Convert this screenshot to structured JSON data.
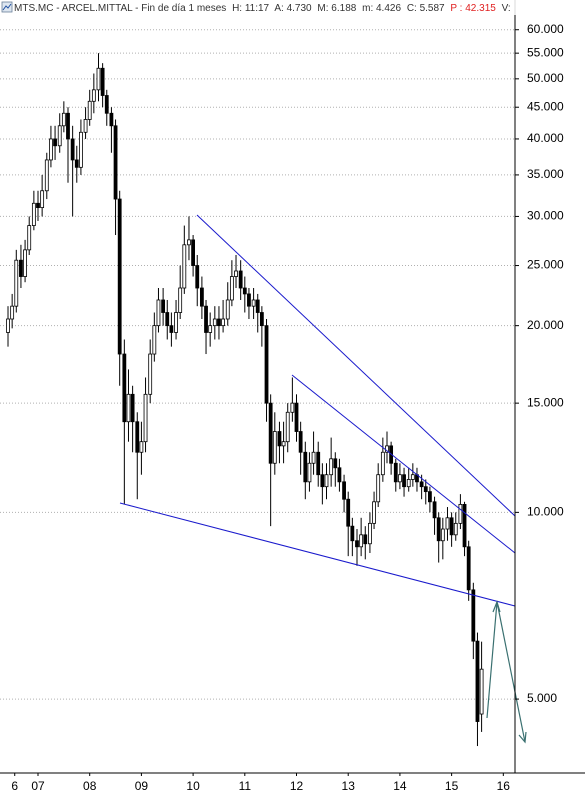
{
  "chart_data": {
    "type": "candlestick",
    "title": "MTS.MC - ARCEL.MITTAL - Fin de día 1 meses",
    "header": [
      "H: 11:17",
      "A: 4.730",
      "M: 6.188",
      "m: 4.426",
      "C: 5.587"
    ],
    "header_alert": "P : 42.315",
    "header_tail": "V:",
    "log": true,
    "grid": true,
    "up_color": "#ffffff",
    "down_color": "#000000",
    "ylim": [
      3.8,
      67
    ],
    "yticks": [
      {
        "value": 5,
        "label": "5.000"
      },
      {
        "value": 10,
        "label": "10.000"
      },
      {
        "value": 15,
        "label": "15.000"
      },
      {
        "value": 20,
        "label": "20.000"
      },
      {
        "value": 25,
        "label": "25.000"
      },
      {
        "value": 30,
        "label": "30.000"
      },
      {
        "value": 35,
        "label": "35.000"
      },
      {
        "value": 40,
        "label": "40.000"
      },
      {
        "value": 45,
        "label": "45.000"
      },
      {
        "value": 50,
        "label": "50.000"
      },
      {
        "value": 55,
        "label": "55.000"
      },
      {
        "value": 60,
        "label": "60.000"
      }
    ],
    "xlim": [
      2006.765,
      2016.726
    ],
    "xticks": [
      {
        "value": 2007.05,
        "label": "6"
      },
      {
        "value": 2007.5,
        "label": "07"
      },
      {
        "value": 2008.5,
        "label": "08"
      },
      {
        "value": 2009.5,
        "label": "09"
      },
      {
        "value": 2010.5,
        "label": "10"
      },
      {
        "value": 2011.5,
        "label": "11"
      },
      {
        "value": 2012.5,
        "label": "12"
      },
      {
        "value": 2013.5,
        "label": "13"
      },
      {
        "value": 2014.5,
        "label": "14"
      },
      {
        "value": 2015.5,
        "label": "15"
      },
      {
        "value": 2016.5,
        "label": "16"
      }
    ],
    "x": [
      2006.92,
      2007.0,
      2007.08,
      2007.17,
      2007.25,
      2007.33,
      2007.42,
      2007.5,
      2007.58,
      2007.67,
      2007.75,
      2007.83,
      2007.92,
      2008.0,
      2008.08,
      2008.17,
      2008.25,
      2008.33,
      2008.42,
      2008.5,
      2008.58,
      2008.67,
      2008.75,
      2008.83,
      2008.92,
      2009.0,
      2009.08,
      2009.17,
      2009.25,
      2009.33,
      2009.42,
      2009.5,
      2009.58,
      2009.67,
      2009.75,
      2009.83,
      2009.92,
      2010.0,
      2010.08,
      2010.17,
      2010.25,
      2010.33,
      2010.42,
      2010.5,
      2010.58,
      2010.67,
      2010.75,
      2010.83,
      2010.92,
      2011.0,
      2011.08,
      2011.17,
      2011.25,
      2011.33,
      2011.42,
      2011.5,
      2011.58,
      2011.67,
      2011.75,
      2011.83,
      2011.92,
      2012.0,
      2012.08,
      2012.17,
      2012.25,
      2012.33,
      2012.42,
      2012.5,
      2012.58,
      2012.67,
      2012.75,
      2012.83,
      2012.92,
      2013.0,
      2013.08,
      2013.17,
      2013.25,
      2013.33,
      2013.42,
      2013.5,
      2013.58,
      2013.67,
      2013.75,
      2013.83,
      2013.92,
      2014.0,
      2014.08,
      2014.17,
      2014.25,
      2014.33,
      2014.42,
      2014.5,
      2014.58,
      2014.67,
      2014.75,
      2014.83,
      2014.92,
      2015.0,
      2015.08,
      2015.17,
      2015.25,
      2015.33,
      2015.42,
      2015.5,
      2015.58,
      2015.67,
      2015.75,
      2015.83,
      2015.92,
      2016.0,
      2016.08
    ],
    "open": [
      19.5,
      20.5,
      21.5,
      25.5,
      24,
      26.5,
      29,
      31.5,
      31,
      33,
      37,
      40,
      39,
      42,
      44,
      40,
      37,
      36,
      41,
      43,
      46,
      48,
      52,
      47,
      44,
      42,
      32,
      18,
      14,
      15.5,
      14,
      12.5,
      13,
      15.5,
      18,
      20,
      22,
      21,
      20,
      19.5,
      21,
      23,
      27,
      27.5,
      25,
      23,
      21.5,
      19.5,
      20,
      20.5,
      20,
      20.5,
      22,
      24,
      24.5,
      23,
      22.5,
      21.5,
      22,
      21,
      20,
      15,
      12,
      13.5,
      12.8,
      13,
      14.5,
      15,
      13.5,
      12.5,
      11.2,
      12,
      12.5,
      11.5,
      11,
      11.5,
      12.2,
      11.8,
      11.2,
      10.5,
      9.5,
      9,
      8.8,
      9.2,
      8.9,
      9.6,
      10.4,
      11.5,
      12.5,
      12.8,
      12,
      11.2,
      11.5,
      11,
      11.3,
      11.5,
      11.2,
      11,
      10.8,
      10.4,
      9.8,
      9,
      9.4,
      9.8,
      9.2,
      9.6,
      10.3,
      8.8,
      7.5,
      6.2,
      4.73
    ],
    "high": [
      21.5,
      22.5,
      26.5,
      27,
      27.5,
      30,
      33,
      33,
      35,
      38,
      42,
      42,
      44,
      46,
      45,
      42,
      39,
      43,
      45,
      48,
      51,
      55,
      53,
      48,
      45,
      43,
      33,
      19,
      17,
      16,
      14.5,
      14,
      16.5,
      19,
      21,
      23,
      23,
      22,
      21,
      22,
      25,
      29,
      30,
      28,
      26,
      24,
      22,
      21,
      21.5,
      21.5,
      22,
      23.5,
      25.5,
      26,
      25.5,
      24,
      23,
      23,
      22.5,
      21.5,
      20.5,
      15.5,
      14.5,
      14,
      14,
      15,
      16.5,
      15.5,
      14,
      13,
      12.5,
      13.5,
      13,
      12,
      12,
      13.2,
      12.5,
      12.2,
      11.5,
      10.8,
      9.8,
      9.4,
      9.8,
      9.5,
      10,
      10.8,
      12,
      13.2,
      13.5,
      13,
      12.2,
      12,
      11.8,
      11.8,
      12,
      11.8,
      11.5,
      11.3,
      11,
      10.6,
      10,
      9.8,
      10.2,
      10,
      10,
      10.7,
      10.4,
      9,
      7.7,
      6.4,
      6.188
    ],
    "low": [
      18.5,
      19.8,
      21,
      23,
      23.5,
      26,
      28.5,
      29.5,
      30,
      32,
      36,
      37,
      38,
      41,
      34,
      30,
      34,
      35,
      40,
      42,
      44,
      46,
      45,
      42,
      38,
      28,
      16,
      10.3,
      13,
      12.5,
      10.5,
      11.5,
      12.5,
      15,
      17.5,
      19.5,
      20,
      19,
      18.5,
      19,
      20.5,
      22.5,
      25.5,
      24,
      21.5,
      20.5,
      18,
      18.5,
      19,
      19,
      19.5,
      20,
      21.5,
      23,
      22,
      21,
      20.5,
      20.5,
      19.5,
      18.5,
      14,
      9.5,
      11.5,
      12,
      12,
      12.5,
      14,
      13,
      11.5,
      10.5,
      10.8,
      11.5,
      11,
      10.3,
      10.5,
      11,
      11,
      10.8,
      10,
      8.5,
      8.5,
      8.2,
      8.5,
      8.4,
      8.6,
      9.4,
      10.2,
      11.2,
      12,
      11.5,
      10.8,
      10.9,
      10.6,
      10.8,
      11,
      10.8,
      10.5,
      10.3,
      10,
      9.2,
      8.3,
      8.4,
      9,
      8.8,
      9,
      9.4,
      8.5,
      7.2,
      5.8,
      4.2,
      4.426
    ],
    "close": [
      20.5,
      21.5,
      25.5,
      24,
      26.5,
      29,
      31.5,
      31,
      33,
      37,
      40,
      39,
      42,
      44,
      40,
      37,
      36,
      41,
      43,
      46,
      48,
      52,
      47,
      44,
      42,
      32,
      18,
      14,
      15.5,
      14,
      12.5,
      13,
      15.5,
      18,
      20,
      22,
      21,
      20,
      19.5,
      21,
      23,
      27,
      27.5,
      25,
      23,
      21.5,
      19.5,
      20,
      20.5,
      20,
      20.5,
      22,
      24,
      24.5,
      23,
      22.5,
      21.5,
      22,
      21,
      20,
      15,
      12,
      13.5,
      12.8,
      13,
      14.5,
      15,
      13.5,
      12.5,
      11.2,
      12,
      12.5,
      11.5,
      11,
      11.5,
      12.2,
      11.8,
      11.2,
      10.5,
      9.5,
      9,
      8.8,
      9.2,
      8.9,
      9.6,
      10.4,
      11.5,
      12.5,
      12.8,
      12,
      11.2,
      11.5,
      11,
      11.3,
      11.5,
      11.2,
      11,
      10.8,
      10.4,
      9.8,
      9,
      9.4,
      9.8,
      9.2,
      9.6,
      10.3,
      8.8,
      7.5,
      6.2,
      4.6,
      5.587
    ]
  }
}
